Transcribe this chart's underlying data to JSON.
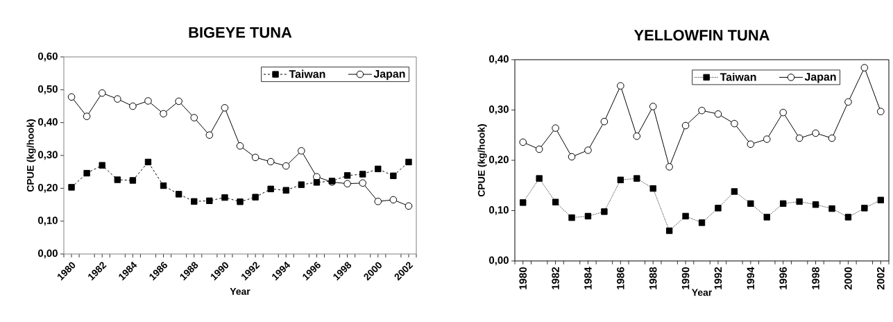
{
  "chart_data": [
    {
      "type": "line",
      "title": "BIGEYE TUNA",
      "xlabel": "Year",
      "ylabel": "CPUE (kg/hook)",
      "categories": [
        "1980",
        null,
        "1982",
        null,
        "1984",
        null,
        "1986",
        null,
        "1988",
        null,
        "1990",
        null,
        "1992",
        null,
        "1994",
        null,
        "1996",
        null,
        "1998",
        null,
        "2000",
        null,
        "2002"
      ],
      "ylim": [
        0,
        0.6
      ],
      "yticks": [
        {
          "value": 0,
          "label": "0,00"
        },
        {
          "value": 0.1,
          "label": "0,10"
        },
        {
          "value": 0.2,
          "label": "0,20"
        },
        {
          "value": 0.3,
          "label": "0,30"
        },
        {
          "value": 0.4,
          "label": "0,40"
        },
        {
          "value": 0.5,
          "label": "0,50"
        },
        {
          "value": 0.6,
          "label": "0,60"
        }
      ],
      "legend": "top right",
      "grid": false,
      "series": [
        {
          "name": "Taiwan",
          "color": "#000000",
          "marker": "square",
          "line_style": "dashed",
          "values": [
            0.203,
            0.246,
            0.27,
            0.226,
            0.224,
            0.28,
            0.208,
            0.182,
            0.16,
            0.162,
            0.172,
            0.159,
            0.173,
            0.198,
            0.194,
            0.211,
            0.218,
            0.222,
            0.239,
            0.243,
            0.259,
            0.238,
            0.28
          ]
        },
        {
          "name": "Japan",
          "color": "#000000",
          "marker": "circle",
          "line_style": "solid",
          "values": [
            0.478,
            0.419,
            0.49,
            0.472,
            0.45,
            0.466,
            0.427,
            0.465,
            0.415,
            0.362,
            0.445,
            0.329,
            0.294,
            0.281,
            0.268,
            0.314,
            0.235,
            0.219,
            0.214,
            0.216,
            0.16,
            0.165,
            0.146
          ]
        }
      ]
    },
    {
      "type": "line",
      "title": "YELLOWFIN TUNA",
      "xlabel": "Year",
      "ylabel": "CPUE (kg/hook)",
      "categories": [
        "1980",
        null,
        "1982",
        null,
        "1984",
        null,
        "1986",
        null,
        "1988",
        null,
        "1990",
        null,
        "1992",
        null,
        "1994",
        null,
        "1996",
        null,
        "1998",
        null,
        "2000",
        null,
        "2002"
      ],
      "ylim": [
        0,
        0.4
      ],
      "yticks": [
        {
          "value": 0,
          "label": "0,00"
        },
        {
          "value": 0.1,
          "label": "0,10"
        },
        {
          "value": 0.2,
          "label": "0,20"
        },
        {
          "value": 0.3,
          "label": "0,30"
        },
        {
          "value": 0.4,
          "label": "0,40"
        }
      ],
      "legend": "top right",
      "grid": false,
      "series": [
        {
          "name": "Taiwan",
          "color": "#000000",
          "marker": "square",
          "line_style": "dotted",
          "values": [
            0.116,
            0.164,
            0.117,
            0.086,
            0.089,
            0.098,
            0.161,
            0.164,
            0.144,
            0.06,
            0.089,
            0.076,
            0.105,
            0.138,
            0.114,
            0.087,
            0.114,
            0.118,
            0.112,
            0.104,
            0.087,
            0.105,
            0.121
          ]
        },
        {
          "name": "Japan",
          "color": "#000000",
          "marker": "circle",
          "line_style": "solid",
          "values": [
            0.236,
            0.222,
            0.264,
            0.207,
            0.22,
            0.277,
            0.348,
            0.248,
            0.307,
            0.187,
            0.269,
            0.299,
            0.292,
            0.273,
            0.232,
            0.242,
            0.295,
            0.244,
            0.254,
            0.244,
            0.316,
            0.384,
            0.297
          ]
        }
      ]
    }
  ]
}
